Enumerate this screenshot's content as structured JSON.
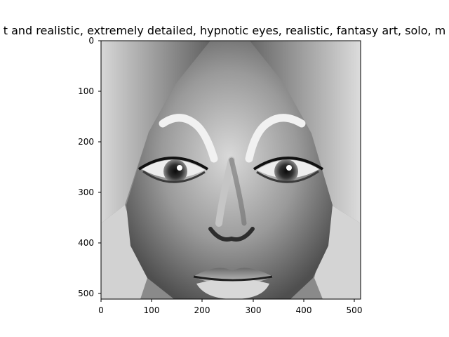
{
  "figure": {
    "title": "t and realistic, extremely detailed, hypnotic eyes, realistic, fantasy art, solo, m",
    "image_subject": "grayscale fantasy portrait of a woman with a draped head covering and hypnotic eyes"
  },
  "axes": {
    "x_ticks": [
      "0",
      "100",
      "200",
      "300",
      "400",
      "500"
    ],
    "y_ticks": [
      "0",
      "100",
      "200",
      "300",
      "400",
      "500"
    ],
    "x_range": [
      0,
      512
    ],
    "y_range": [
      512,
      0
    ],
    "image_extent": [
      0,
      512,
      512,
      0
    ],
    "grid": false
  },
  "colors": {
    "background": "#ffffff",
    "axes": "#000000",
    "image_dark": "#1a1a1a",
    "image_mid": "#7a7a7a",
    "image_light": "#e6e6e6"
  }
}
